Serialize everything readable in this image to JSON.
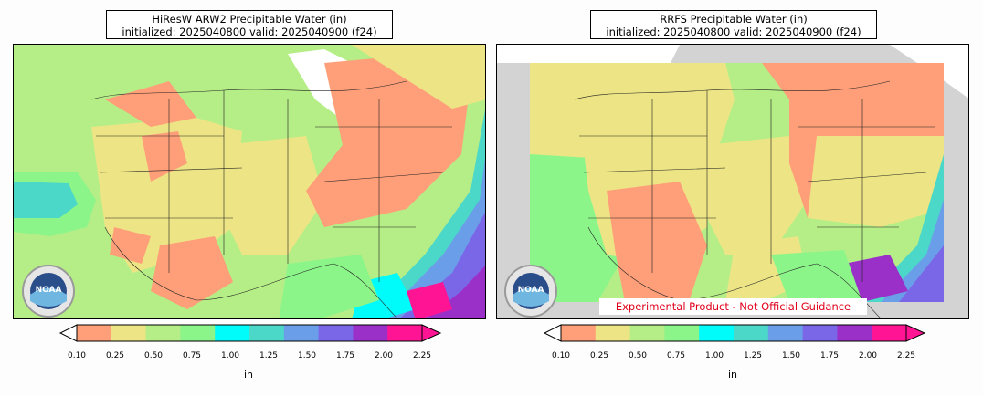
{
  "panels": [
    {
      "title_line1": "HiResW ARW2 Precipitable Water (in)",
      "title_line2": "initialized: 2025040800 valid: 2025040900 (f24)",
      "logo_text": "NOAA"
    },
    {
      "title_line1": "RRFS Precipitable Water (in)",
      "title_line2": "initialized: 2025040800 valid: 2025040900 (f24)",
      "logo_text": "NOAA"
    }
  ],
  "disclaimer": "Experimental Product - Not Official Guidance",
  "colorbar": {
    "unit": "in",
    "ticks": [
      "0.10",
      "0.25",
      "0.50",
      "0.75",
      "1.00",
      "1.25",
      "1.50",
      "1.75",
      "2.00",
      "2.25"
    ],
    "colors": [
      "#ff9f79",
      "#ede585",
      "#b5ee86",
      "#8cf58a",
      "#00fbfb",
      "#4cd8c8",
      "#6b9ee8",
      "#7a67e8",
      "#9b30c8",
      "#ff1493"
    ],
    "extend_under_color": "#ffffff",
    "extend_over_color": "#ff1493"
  },
  "colors": {
    "orange": "#ff9f79",
    "yellow": "#ede585",
    "lightgreen": "#b5ee86",
    "green": "#8cf58a",
    "cyan": "#00fbfb",
    "turquoise": "#4cd8c8",
    "blue": "#6b9ee8",
    "violet": "#7a67e8",
    "purple": "#9b30c8",
    "pink": "#ff1493",
    "missing": "#d3d3d3"
  }
}
